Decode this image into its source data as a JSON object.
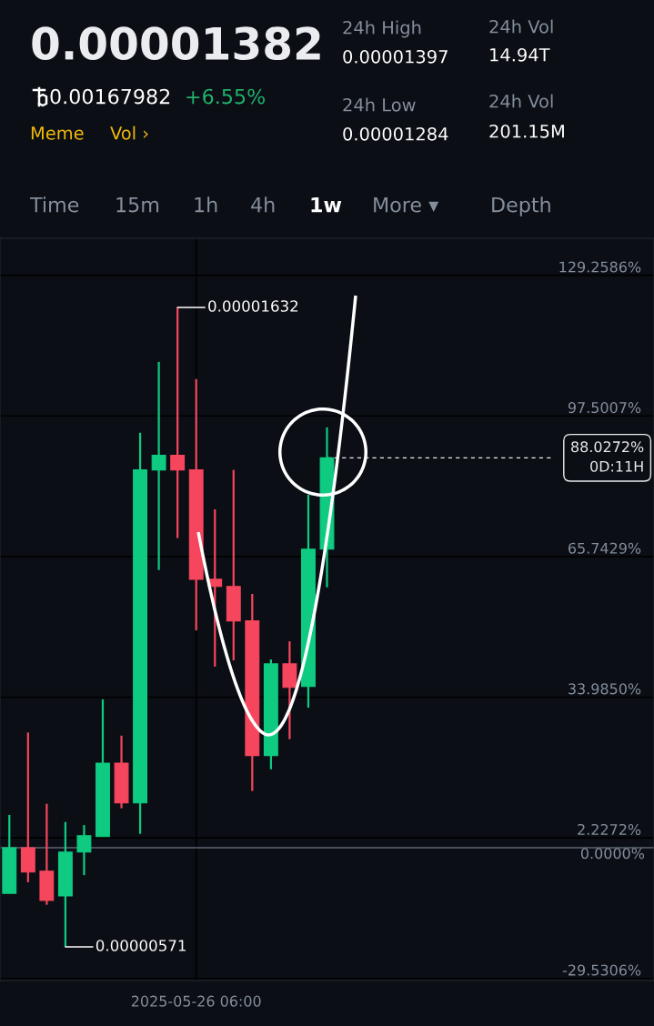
{
  "chart_data": {
    "type": "candlestick",
    "title": "0.00001382",
    "categories": [
      null,
      null,
      null,
      null,
      null,
      null,
      null,
      null,
      null,
      null,
      null,
      null,
      null,
      null,
      null,
      null,
      null,
      null,
      null,
      null,
      null,
      null,
      null,
      null,
      null,
      null,
      null,
      null,
      null,
      null,
      null,
      null,
      null,
      null,
      null
    ],
    "ohlc": [
      [
        -10.3,
        7.4,
        -10.3,
        0.0
      ],
      [
        0.0,
        26.0,
        -7.8,
        -5.5
      ],
      [
        -5.3,
        9.9,
        -12.9,
        -11.9
      ],
      [
        -10.9,
        5.8,
        -22.4,
        -1.0
      ],
      [
        -1.0,
        5.1,
        -6.2,
        2.7
      ],
      [
        2.5,
        33.5,
        2.5,
        19.1
      ],
      [
        19.1,
        25.3,
        8.9,
        10.1
      ],
      [
        10.1,
        93.7,
        3.1,
        85.3
      ],
      [
        85.3,
        109.7,
        62.7,
        88.6
      ],
      [
        88.6,
        122.0,
        69.9,
        85.3
      ],
      [
        85.3,
        105.8,
        49.1,
        60.6
      ],
      [
        60.6,
        76.4,
        40.9,
        59.0
      ],
      [
        59.0,
        85.3,
        42.3,
        51.2
      ],
      [
        51.2,
        57.3,
        12.8,
        20.8
      ],
      [
        20.8,
        42.5,
        17.7,
        41.5
      ],
      [
        41.5,
        46.6,
        24.5,
        36.2
      ],
      [
        36.4,
        79.7,
        31.6,
        67.4
      ],
      [
        67.4,
        94.9,
        58.8,
        88.0272
      ],
      null,
      null,
      null,
      null,
      null,
      null,
      null,
      null,
      null,
      null,
      null,
      null,
      null,
      null,
      null,
      null,
      null
    ],
    "colors": [
      "#0ecb81",
      "#f6465d",
      "#f6465d",
      "#0ecb81",
      "#0ecb81",
      "#0ecb81",
      "#f6465d",
      "#0ecb81",
      "#0ecb81",
      "#f6465d",
      "#f6465d",
      "#f6465d",
      "#f6465d",
      "#f6465d",
      "#0ecb81",
      "#f6465d",
      "#0ecb81",
      "#0ecb81",
      null,
      null,
      null,
      null,
      null,
      null,
      null,
      null,
      null,
      null,
      null,
      null,
      null,
      null,
      null,
      null,
      null
    ],
    "ylim": [
      -30.0,
      137.6
    ],
    "yticks": [
      {
        "value": 129.2586,
        "label": "129.2586%"
      },
      {
        "value": 97.5007,
        "label": "97.5007%"
      },
      {
        "value": 65.7429,
        "label": "65.7429%"
      },
      {
        "value": 33.985,
        "label": "33.9850%"
      },
      {
        "value": 2.2272,
        "label": "2.2272%"
      },
      {
        "value": -29.5306,
        "label": "-29.5306%"
      }
    ],
    "grid": true,
    "ref_lines": [
      {
        "axis": "y",
        "value": 0.0,
        "label": "0.0000%",
        "color": "#5e6673",
        "line_style": "solid"
      },
      {
        "axis": "y",
        "value": 88.0272,
        "label": "88.0272%\n0D:11H",
        "color": "#eaecef",
        "line_style": "dashed"
      }
    ],
    "annotations": [
      "0.00167982",
      "+6.55%",
      "Meme",
      "Vol ›",
      "24h High",
      "0.00001397",
      "24h Low",
      "0.00001284",
      "24h Vol",
      "14.94T",
      "24h Vol",
      "201.15M",
      "Time",
      "15m",
      "1h",
      "4h",
      "1w",
      "More ▾",
      "Depth",
      "0.00001632",
      "0.00000571",
      "2025-05-26 06:00"
    ]
  }
}
